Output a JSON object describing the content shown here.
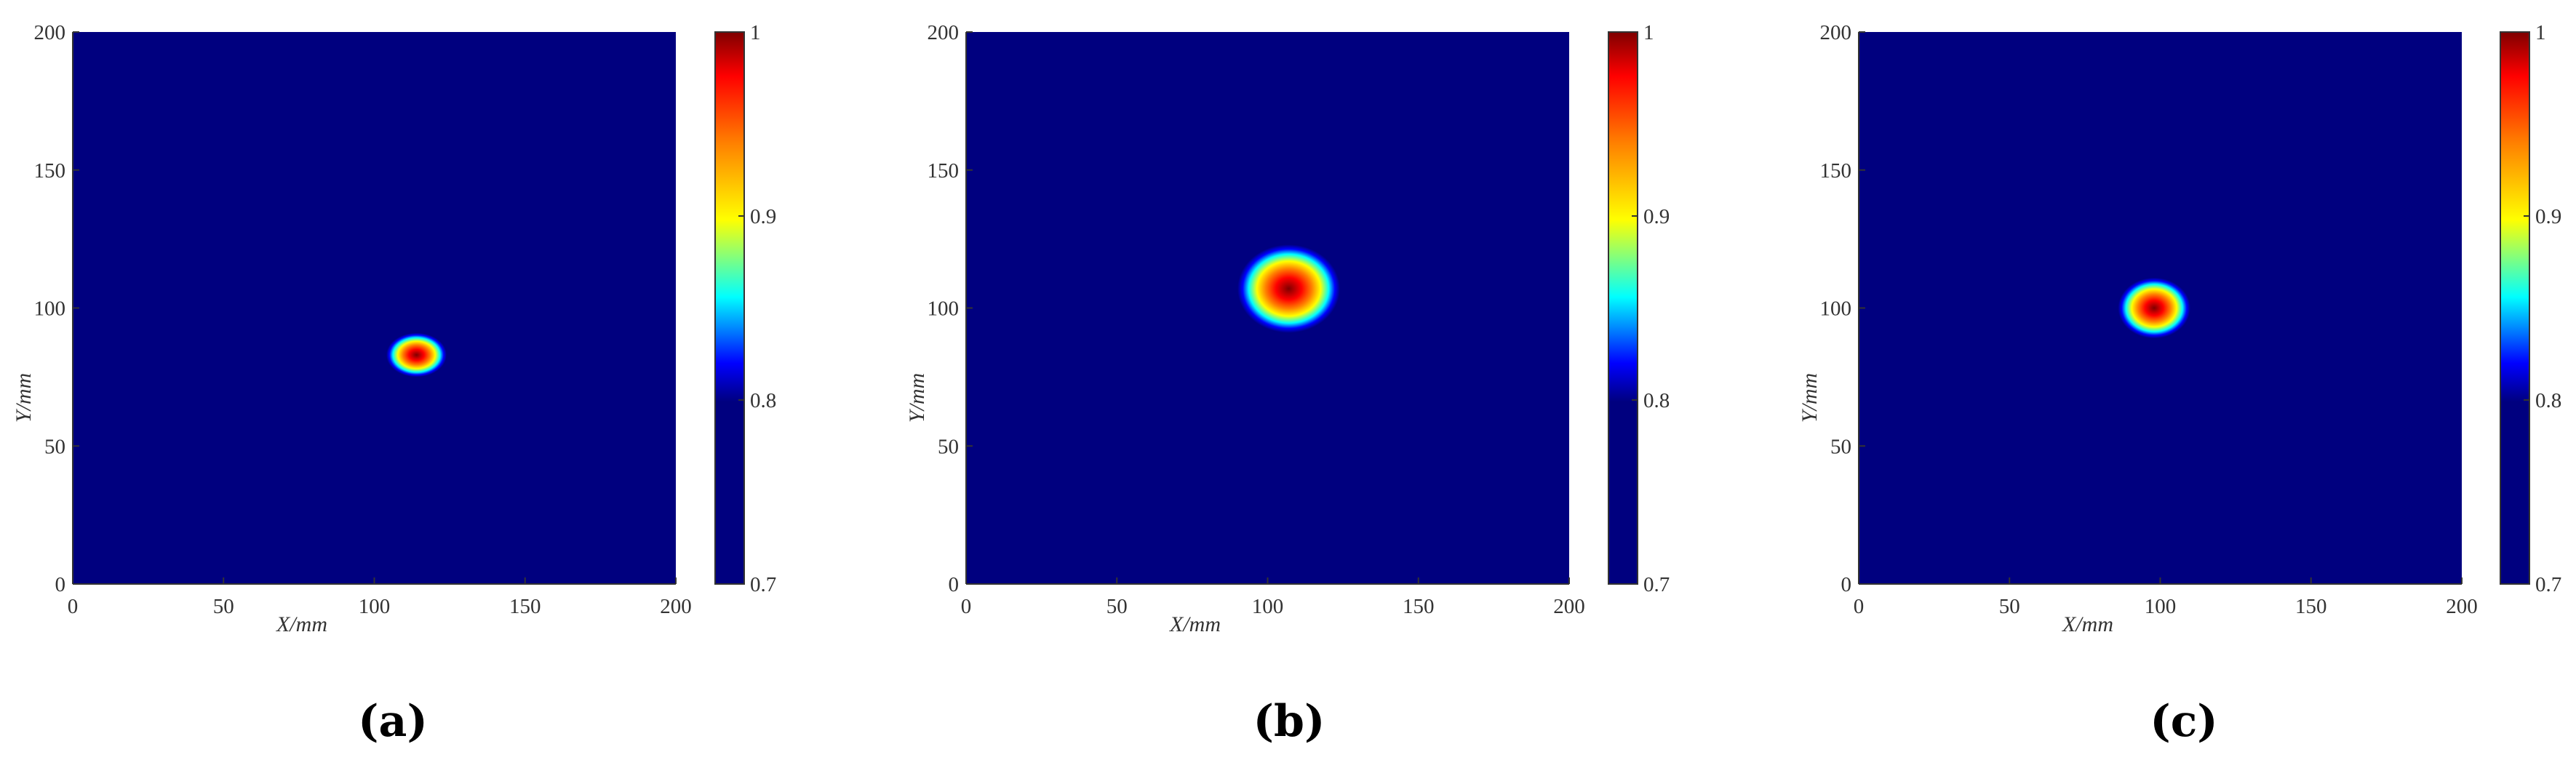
{
  "colors": {
    "background": "#00007f",
    "colormap": [
      "#00007f",
      "#0000ff",
      "#00ffff",
      "#ffff00",
      "#ff7f00",
      "#ff0000",
      "#7f0000"
    ]
  },
  "chart_data": [
    {
      "type": "heatmap",
      "caption": "(a)",
      "xlabel": "X/mm",
      "ylabel": "Y/mm",
      "xlim": [
        0,
        200
      ],
      "ylim": [
        0,
        200
      ],
      "xticks": [
        "0",
        "50",
        "100",
        "150",
        "200"
      ],
      "yticks": [
        "0",
        "50",
        "100",
        "150",
        "200"
      ],
      "colorbar": {
        "range": [
          0.7,
          1
        ],
        "ticks": [
          "0.7",
          "0.8",
          "0.9",
          "1"
        ],
        "colormap": "jet"
      },
      "baseline_value": 0.7,
      "hotspot": {
        "center_x": 114,
        "center_y": 83,
        "radius_x": 10,
        "radius_y": 8,
        "peak": 1.0
      }
    },
    {
      "type": "heatmap",
      "caption": "(b)",
      "xlabel": "X/mm",
      "ylabel": "Y/mm",
      "xlim": [
        0,
        200
      ],
      "ylim": [
        0,
        200
      ],
      "xticks": [
        "0",
        "50",
        "100",
        "150",
        "200"
      ],
      "yticks": [
        "0",
        "50",
        "100",
        "150",
        "200"
      ],
      "colorbar": {
        "range": [
          0.7,
          1
        ],
        "ticks": [
          "0.7",
          "0.8",
          "0.9",
          "1"
        ],
        "colormap": "jet"
      },
      "baseline_value": 0.7,
      "hotspot": {
        "center_x": 107,
        "center_y": 107,
        "radius_x": 17,
        "radius_y": 16,
        "peak": 1.0
      }
    },
    {
      "type": "heatmap",
      "caption": "(c)",
      "xlabel": "X/mm",
      "ylabel": "Y/mm",
      "xlim": [
        0,
        200
      ],
      "ylim": [
        0,
        200
      ],
      "xticks": [
        "0",
        "50",
        "100",
        "150",
        "200"
      ],
      "yticks": [
        "0",
        "50",
        "100",
        "150",
        "200"
      ],
      "colorbar": {
        "range": [
          0.7,
          1
        ],
        "ticks": [
          "0.7",
          "0.8",
          "0.9",
          "1"
        ],
        "colormap": "jet"
      },
      "baseline_value": 0.7,
      "hotspot": {
        "center_x": 98,
        "center_y": 100,
        "radius_x": 12,
        "radius_y": 11,
        "peak": 1.0
      }
    }
  ]
}
